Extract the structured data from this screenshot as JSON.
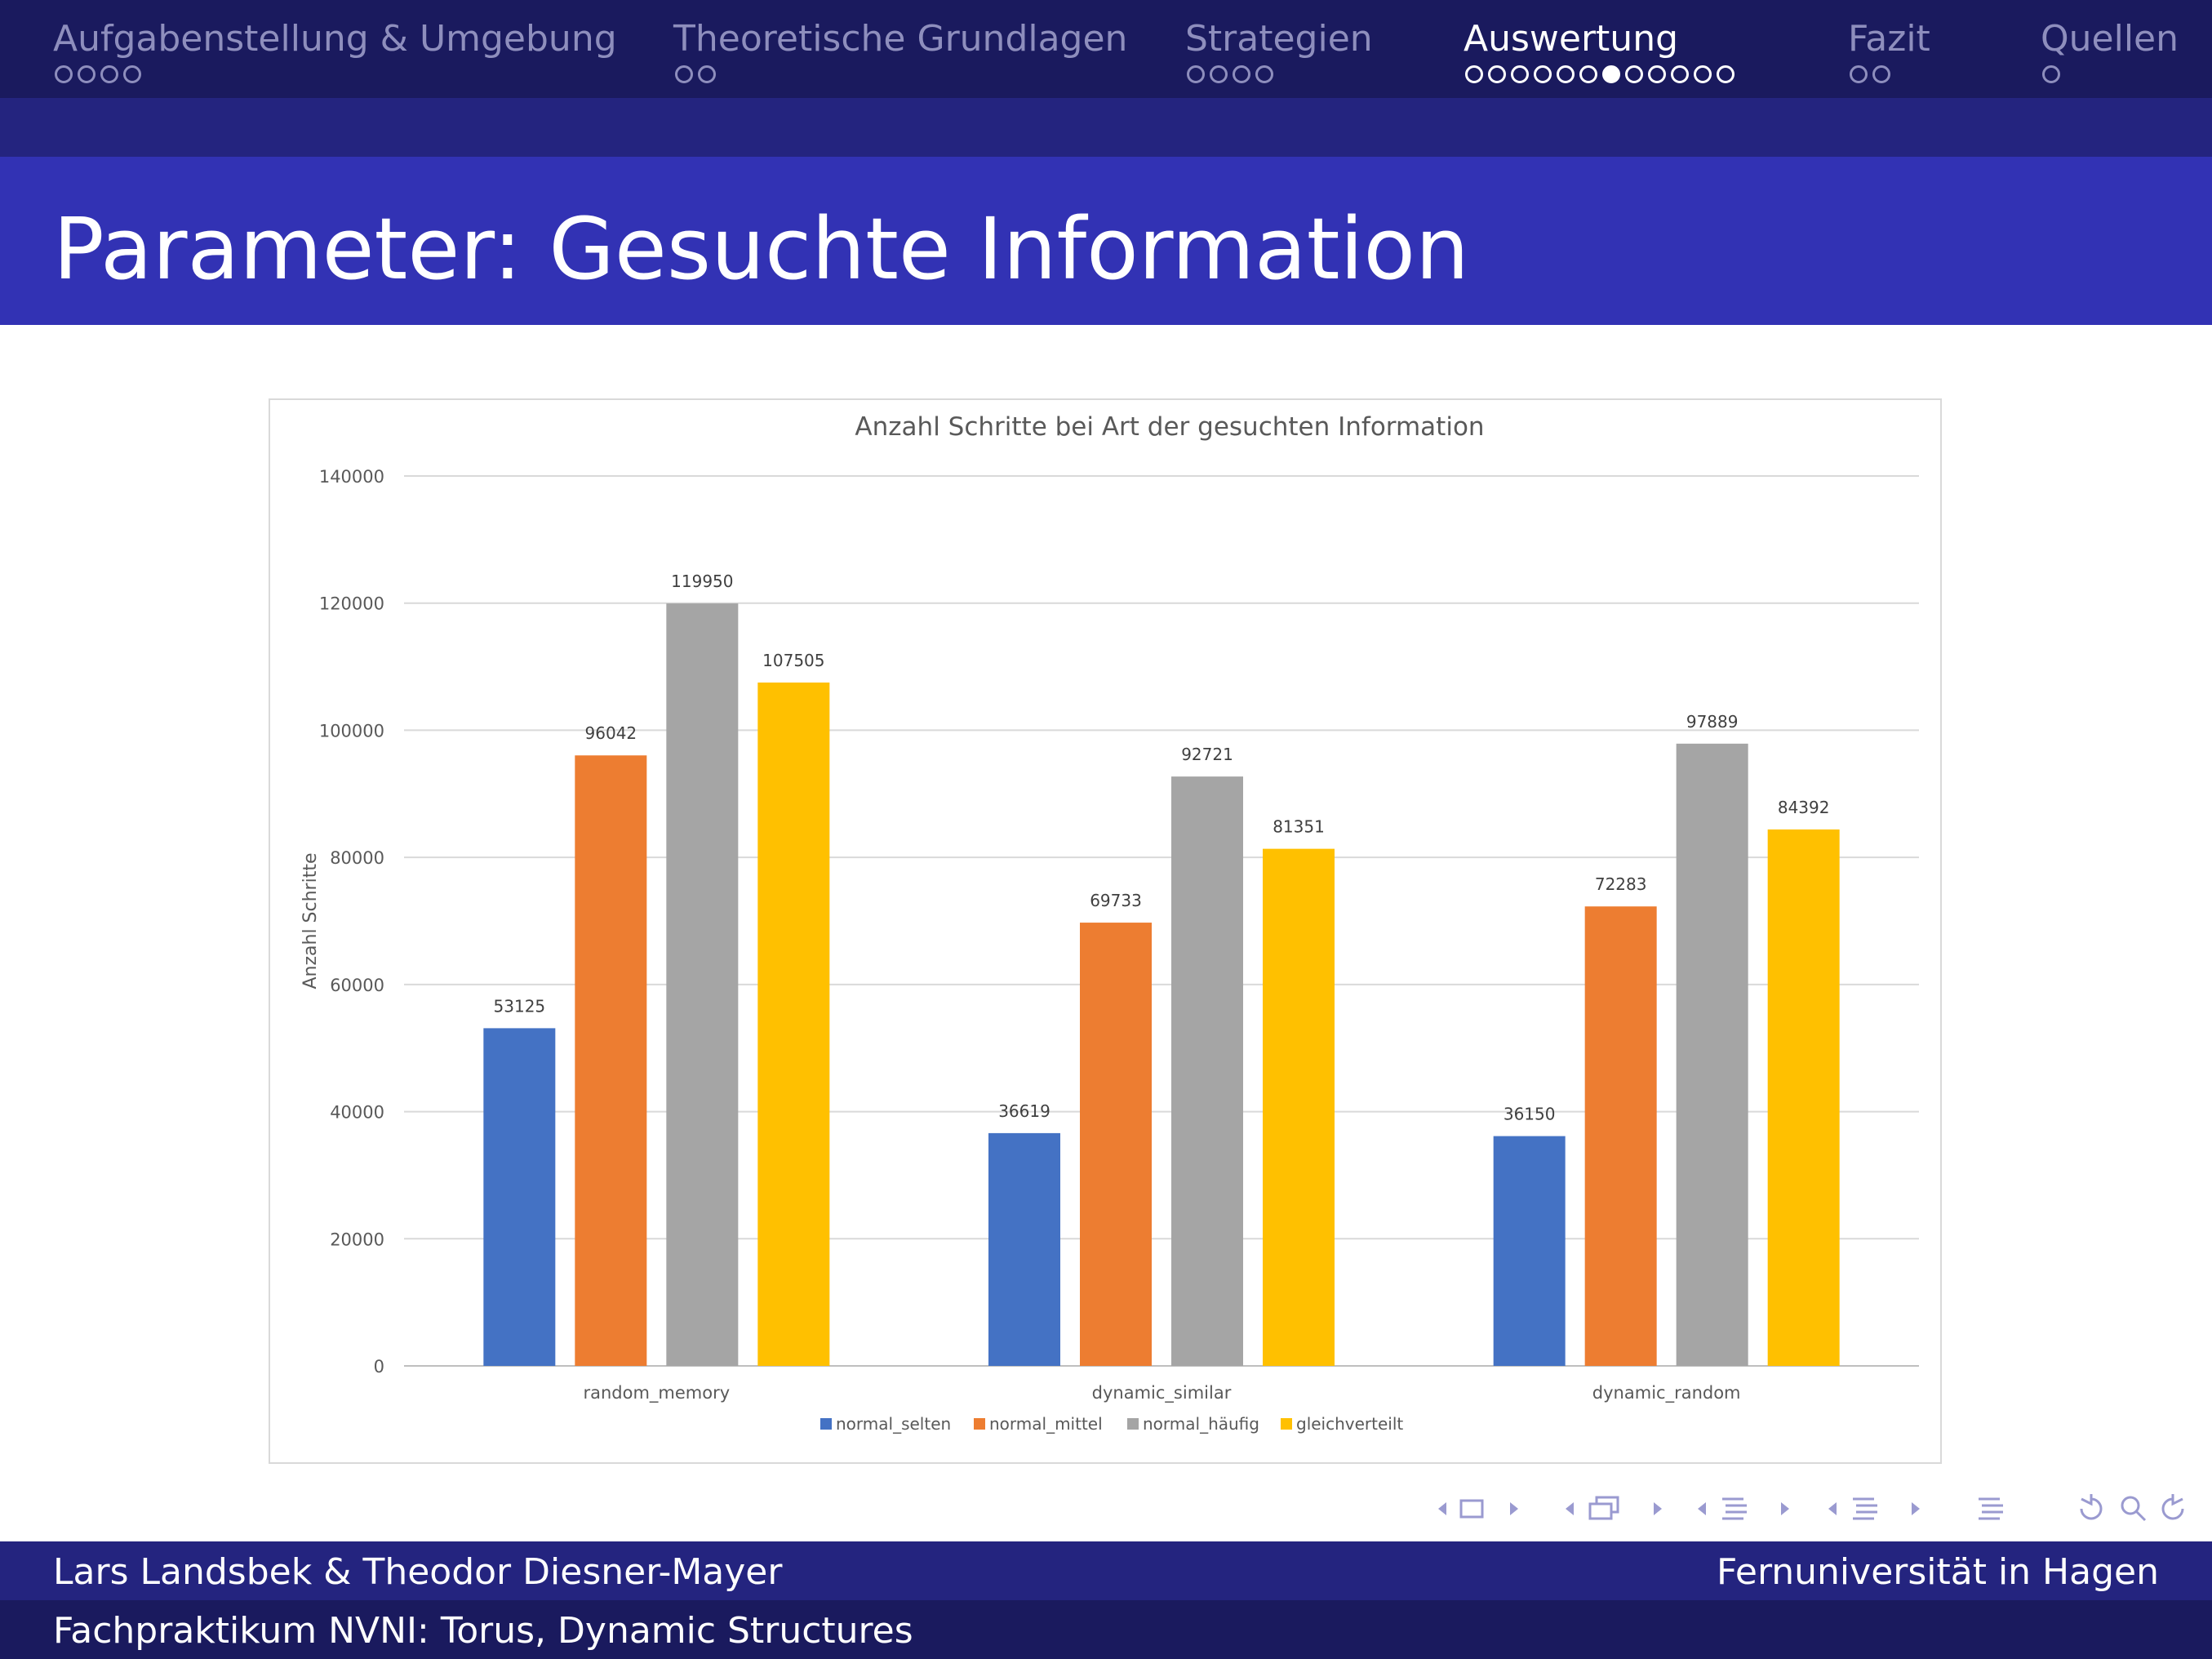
{
  "nav": {
    "sections": [
      {
        "label": "Aufgabenstellung & Umgebung",
        "dots": 4,
        "filled": -1,
        "active": false
      },
      {
        "label": "Theoretische Grundlagen",
        "dots": 2,
        "filled": -1,
        "active": false
      },
      {
        "label": "Strategien",
        "dots": 4,
        "filled": -1,
        "active": false
      },
      {
        "label": "Auswertung",
        "dots": 12,
        "filled": 6,
        "active": true
      },
      {
        "label": "Fazit",
        "dots": 2,
        "filled": -1,
        "active": false
      },
      {
        "label": "Quellen",
        "dots": 1,
        "filled": -1,
        "active": false
      }
    ]
  },
  "slide": {
    "title": "Parameter: Gesuchte Information"
  },
  "chart_data": {
    "type": "bar",
    "title": "Anzahl Schritte bei Art der gesuchten Information",
    "xlabel": "",
    "ylabel": "Anzahl Schritte",
    "ylim": [
      0,
      140000
    ],
    "yticks": [
      0,
      20000,
      40000,
      60000,
      80000,
      100000,
      120000,
      140000
    ],
    "grid": true,
    "legend_position": "bottom",
    "categories": [
      "random_memory",
      "dynamic_similar",
      "dynamic_random"
    ],
    "series": [
      {
        "name": "normal_selten",
        "color": "#4472c4",
        "values": [
          53125,
          36619,
          36150
        ]
      },
      {
        "name": "normal_mittel",
        "color": "#ed7d31",
        "values": [
          96042,
          69733,
          72283
        ]
      },
      {
        "name": "normal_häufig",
        "color": "#a5a5a5",
        "values": [
          119950,
          92721,
          97889
        ]
      },
      {
        "name": "gleichverteilt",
        "color": "#ffc000",
        "values": [
          107505,
          81351,
          84392
        ]
      }
    ]
  },
  "footer": {
    "authors": "Lars Landsbek & Theodor Diesner-Mayer",
    "institution": "Fernuniversität in Hagen",
    "course": "Fachpraktikum NVNI: Torus, Dynamic Structures"
  },
  "colors": {
    "nav_bg": "#1a1a5e",
    "subbar_bg": "#24247f",
    "title_bg": "#3232b4",
    "nav_inactive": "#8e8ebd"
  }
}
